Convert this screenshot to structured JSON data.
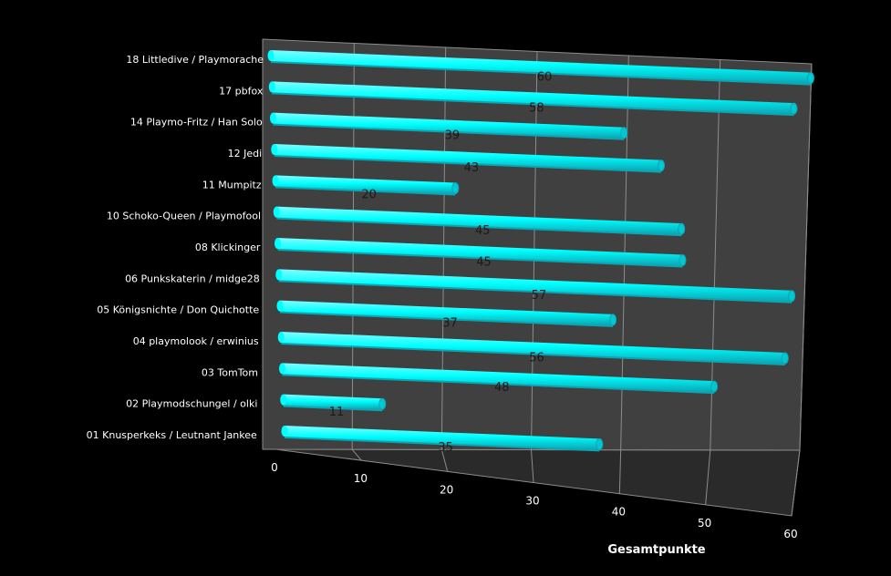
{
  "chart_data": {
    "type": "bar",
    "orientation": "horizontal",
    "style": "3d-cylinder",
    "title": "",
    "xlabel": "Gesamtpunkte",
    "ylabel": "",
    "xlim": [
      0,
      60
    ],
    "xticks": [
      0,
      10,
      20,
      30,
      40,
      50,
      60
    ],
    "grid": true,
    "legend": "none",
    "categories": [
      "18 Littledive / Playmorache",
      "17 pbfox",
      "14 Playmo-Fritz / Han Solo",
      "12 Jedi",
      "11 Mumpitz",
      "10 Schoko-Queen / Playmofool",
      "08 Klickinger",
      "06 Punkskaterin / midge28",
      "05 Königsnichte / Don Quichotte",
      "04 playmolook / erwinius",
      "03 TomTom",
      "02 Playmodschungel / olki",
      "01 Knusperkeks / Leutnant Jankee"
    ],
    "values": [
      60,
      58,
      39,
      43,
      20,
      45,
      45,
      57,
      37,
      56,
      48,
      11,
      35
    ]
  },
  "colors": {
    "background": "#000000",
    "wall": "#404040",
    "floor": "#2a2a2a",
    "gridline": "#8c8c8c",
    "bar_fill": "#00ffff",
    "bar_shadow": "#0aa6b4",
    "bar_cap": "#00c8d2",
    "text": "#ffffff",
    "data_label": "#1a1a1a"
  }
}
